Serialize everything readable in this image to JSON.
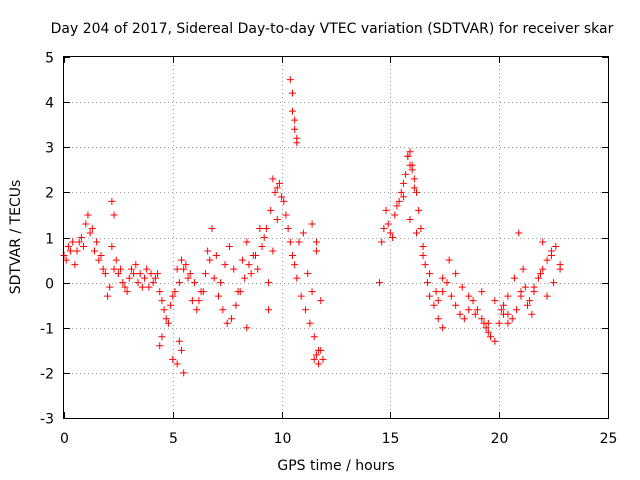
{
  "chart_data": {
    "type": "scatter",
    "title": "Day 204 of 2017, Sidereal Day-to-day VTEC variation (SDTVAR) for receiver skar",
    "xlabel": "GPS time / hours",
    "ylabel": "SDTVAR / TECUs",
    "xlim": [
      0,
      25
    ],
    "ylim": [
      -3,
      5
    ],
    "xticks": [
      "0",
      "5",
      "10",
      "15",
      "20",
      "25"
    ],
    "yticks": [
      "-3",
      "-2",
      "-1",
      "0",
      "1",
      "2",
      "3",
      "4",
      "5"
    ],
    "grid": true,
    "marker": "+",
    "color": "#ff0000",
    "series": [
      {
        "name": "SDTVAR",
        "x": [
          0.0,
          0.2,
          0.4,
          0.6,
          0.8,
          1.0,
          1.1,
          1.3,
          1.5,
          1.7,
          1.9,
          2.1,
          2.3,
          2.5,
          2.7,
          2.9,
          3.1,
          3.3,
          3.5,
          3.7,
          3.9,
          4.1,
          4.3,
          4.5,
          4.7,
          4.9,
          5.1,
          5.3,
          5.5,
          5.7,
          5.9,
          6.1,
          6.3,
          6.5,
          6.7,
          6.9,
          7.1,
          7.3,
          7.5,
          7.7,
          7.9,
          8.1,
          8.3,
          8.5,
          8.7,
          8.9,
          9.1,
          9.3,
          9.5,
          9.7,
          9.9,
          10.1,
          10.3,
          10.5,
          10.7,
          10.9,
          11.1,
          11.3,
          11.5,
          11.7,
          11.9,
          0.1,
          0.3,
          0.5,
          0.7,
          0.9,
          1.2,
          1.4,
          1.6,
          1.8,
          2.0,
          2.2,
          2.4,
          2.6,
          2.8,
          3.0,
          3.2,
          3.4,
          3.6,
          3.8,
          4.0,
          4.2,
          4.4,
          4.6,
          4.8,
          5.0,
          5.2,
          5.4,
          5.6,
          5.8,
          6.0,
          6.2,
          6.4,
          6.6,
          6.8,
          7.0,
          7.2,
          7.4,
          7.6,
          7.8,
          8.0,
          8.2,
          8.4,
          8.6,
          8.8,
          9.0,
          9.2,
          9.4,
          9.6,
          9.8,
          10.0,
          10.2,
          10.4,
          10.6,
          10.8,
          11.0,
          11.2,
          11.4,
          11.6,
          11.8,
          2.2,
          2.3,
          4.4,
          4.5,
          5.0,
          5.2,
          5.4,
          5.5,
          5.3,
          10.4,
          10.5,
          10.5,
          10.6,
          10.6,
          10.7,
          10.7,
          11.5,
          11.6,
          11.7,
          11.8,
          11.4,
          11.6,
          8.4,
          9.4,
          9.6,
          9.8,
          14.5,
          14.6,
          14.8,
          14.9,
          15.0,
          15.2,
          15.4,
          15.5,
          15.6,
          15.7,
          15.8,
          15.9,
          16.0,
          16.1,
          16.2,
          16.3,
          16.4,
          16.5,
          16.6,
          16.7,
          16.8,
          17.0,
          17.2,
          17.4,
          17.6,
          17.8,
          18.0,
          18.2,
          18.4,
          18.6,
          18.8,
          19.0,
          19.2,
          19.4,
          19.6,
          19.8,
          20.0,
          20.2,
          20.4,
          20.6,
          20.8,
          21.0,
          21.2,
          21.4,
          21.6,
          21.8,
          22.0,
          22.2,
          22.4,
          22.6,
          22.8,
          14.7,
          15.1,
          15.3,
          15.6,
          15.9,
          16.2,
          16.5,
          16.8,
          17.1,
          17.4,
          17.7,
          18.0,
          18.3,
          18.6,
          18.9,
          19.2,
          19.5,
          19.8,
          20.1,
          20.4,
          20.7,
          21.0,
          21.3,
          21.6,
          21.9,
          22.2,
          22.5,
          22.8,
          15.8,
          15.9,
          16.0,
          16.1,
          17.2,
          17.4,
          19.3,
          19.5,
          20.2,
          20.4,
          20.9,
          21.1,
          21.5,
          22.0,
          22.4
        ],
        "y": [
          0.6,
          0.8,
          0.9,
          0.7,
          1.0,
          1.3,
          1.5,
          1.2,
          0.9,
          0.6,
          0.2,
          -0.1,
          0.3,
          0.2,
          0.0,
          -0.2,
          0.3,
          0.4,
          0.2,
          0.1,
          -0.1,
          0.0,
          0.2,
          -0.4,
          -0.8,
          -0.5,
          -0.2,
          0.0,
          0.3,
          0.1,
          -0.4,
          -0.6,
          -0.2,
          0.2,
          0.5,
          0.1,
          -0.3,
          -0.6,
          -0.9,
          -0.8,
          -0.5,
          -0.2,
          0.1,
          0.4,
          0.6,
          0.3,
          0.8,
          1.2,
          1.6,
          2.0,
          2.2,
          1.8,
          1.2,
          0.6,
          0.1,
          -0.3,
          -0.6,
          -0.9,
          -1.2,
          -1.5,
          -1.7,
          0.5,
          0.7,
          0.4,
          0.9,
          0.8,
          1.1,
          0.7,
          0.5,
          0.3,
          -0.3,
          0.8,
          0.5,
          0.3,
          -0.1,
          0.1,
          0.2,
          0.0,
          -0.1,
          0.3,
          0.2,
          0.1,
          -0.2,
          -0.6,
          -0.9,
          -0.3,
          0.3,
          0.5,
          0.4,
          0.2,
          0.0,
          -0.4,
          -0.2,
          0.7,
          1.2,
          0.6,
          0.0,
          0.4,
          0.8,
          0.3,
          -0.2,
          0.5,
          0.9,
          0.2,
          0.6,
          1.2,
          1.0,
          0.0,
          0.7,
          1.4,
          1.9,
          1.5,
          0.9,
          0.4,
          0.9,
          1.1,
          0.2,
          -0.2,
          0.7,
          -0.4,
          1.8,
          1.5,
          -1.4,
          -1.2,
          -1.7,
          -1.8,
          -1.5,
          -2.0,
          -1.3,
          4.5,
          4.2,
          3.8,
          3.6,
          3.4,
          3.2,
          3.1,
          -1.7,
          -1.6,
          -1.8,
          -1.5,
          1.3,
          0.9,
          -1.0,
          -0.6,
          2.3,
          2.1,
          0.0,
          0.9,
          1.6,
          1.3,
          1.1,
          1.5,
          1.8,
          2.0,
          2.2,
          2.4,
          2.8,
          2.9,
          2.6,
          2.3,
          2.0,
          1.6,
          1.2,
          0.8,
          0.4,
          0.0,
          -0.3,
          -0.5,
          -0.4,
          -0.2,
          0.0,
          -0.3,
          -0.5,
          -0.7,
          -0.8,
          -0.6,
          -0.4,
          -0.6,
          -0.8,
          -1.0,
          -1.2,
          -1.3,
          -0.9,
          -0.5,
          -0.7,
          -0.8,
          -0.6,
          -0.3,
          -0.1,
          -0.4,
          -0.2,
          0.1,
          0.3,
          0.5,
          0.6,
          0.8,
          0.4,
          1.2,
          1.0,
          1.7,
          1.9,
          1.4,
          1.1,
          0.6,
          0.2,
          -0.2,
          0.1,
          0.5,
          0.2,
          -0.1,
          -0.3,
          -0.7,
          -0.2,
          -0.9,
          -0.4,
          -0.6,
          -0.3,
          0.1,
          -0.2,
          -0.5,
          -0.1,
          0.2,
          -0.3,
          0.0,
          0.3,
          2.8,
          2.6,
          2.5,
          2.1,
          -0.8,
          -1.0,
          -0.9,
          -1.1,
          -0.7,
          -0.9,
          1.1,
          0.3,
          -0.7,
          0.9,
          0.7
        ]
      }
    ]
  }
}
